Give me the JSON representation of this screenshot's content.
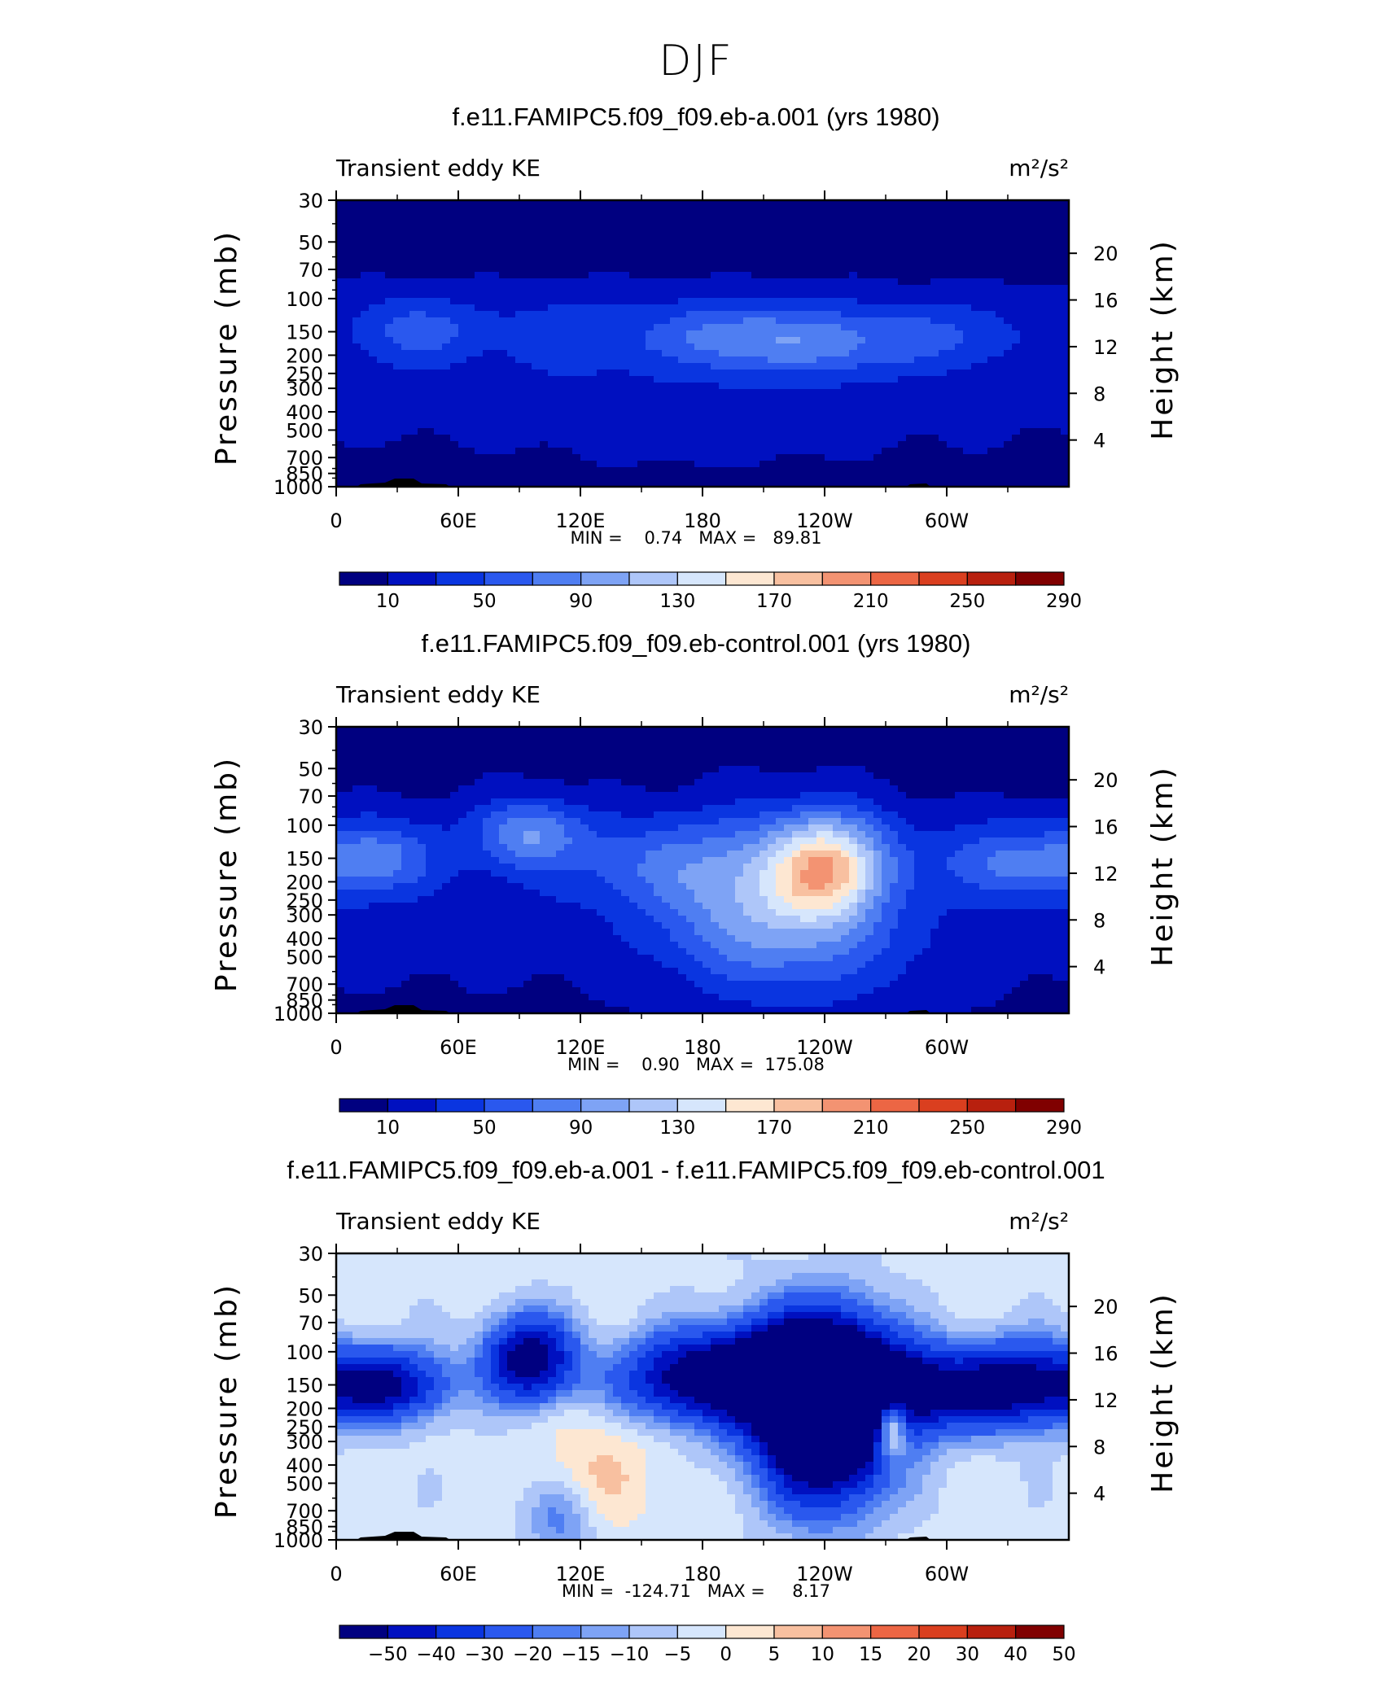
{
  "figure_title": "DJF",
  "palettes": {
    "abs": [
      "#000080",
      "#0010c0",
      "#0a35e0",
      "#2a58ee",
      "#4f7ef2",
      "#7ea3f5",
      "#aec6f9",
      "#d6e6fc",
      "#fde7d2",
      "#f8c0a0",
      "#f39372",
      "#ec6644",
      "#da3f1f",
      "#b8200e",
      "#800000"
    ],
    "diff": [
      "#000080",
      "#0010c0",
      "#0a35e0",
      "#2a58ee",
      "#4f7ef2",
      "#7ea3f5",
      "#aec6f9",
      "#d6e6fc",
      "#fde7d2",
      "#f8c0a0",
      "#f39372",
      "#ec6644",
      "#da3f1f",
      "#b8200e",
      "#800000"
    ]
  },
  "topography_color": "#000000",
  "chart_data": [
    {
      "type": "heatmap",
      "title": "f.e11.FAMIPC5.f09_f09.eb-a.001 (yrs 1980)",
      "left_label": "Transient eddy KE",
      "right_label": "m²/s²",
      "ylabel": "Pressure (mb)",
      "y2label": "Height (km)",
      "x_ticks": [
        "0",
        "60E",
        "120E",
        "180",
        "120W",
        "60W"
      ],
      "y_ticks": [
        "30",
        "50",
        "70",
        "100",
        "150",
        "200",
        "250",
        "300",
        "400",
        "500",
        "700",
        "850",
        "1000"
      ],
      "y2_ticks": [
        "20",
        "16",
        "12",
        "8",
        "4"
      ],
      "stats": "MIN =    0.74   MAX =   89.81",
      "min": 0.74,
      "max": 89.81,
      "colorbar": {
        "palette": "abs",
        "labels": [
          "10",
          "50",
          "90",
          "130",
          "170",
          "210",
          "250",
          "290"
        ]
      },
      "fields": {
        "base": 15,
        "blobs": [
          {
            "lon": 190,
            "p": 160,
            "slon": 25,
            "slp": 0.3,
            "amp": 55
          },
          {
            "lon": 240,
            "p": 170,
            "slon": 28,
            "slp": 0.3,
            "amp": 60
          },
          {
            "lon": 40,
            "p": 150,
            "slon": 22,
            "slp": 0.3,
            "amp": 45
          },
          {
            "lon": 120,
            "p": 160,
            "slon": 30,
            "slp": 0.35,
            "amp": 30
          },
          {
            "lon": 300,
            "p": 160,
            "slon": 25,
            "slp": 0.3,
            "amp": 35
          },
          {
            "lon": 180,
            "p": 450,
            "slon": 60,
            "slp": 0.4,
            "amp": 10
          }
        ],
        "strat_drop": 14,
        "sfc_drop": 10
      }
    },
    {
      "type": "heatmap",
      "title": "f.e11.FAMIPC5.f09_f09.eb-control.001 (yrs 1980)",
      "left_label": "Transient eddy KE",
      "right_label": "m²/s²",
      "ylabel": "Pressure (mb)",
      "y2label": "Height (km)",
      "x_ticks": [
        "0",
        "60E",
        "120E",
        "180",
        "120W",
        "60W"
      ],
      "y_ticks": [
        "30",
        "50",
        "70",
        "100",
        "150",
        "200",
        "250",
        "300",
        "400",
        "500",
        "700",
        "850",
        "1000"
      ],
      "y2_ticks": [
        "20",
        "16",
        "12",
        "8",
        "4"
      ],
      "stats": "MIN =    0.90   MAX =  175.08",
      "min": 0.9,
      "max": 175.08,
      "colorbar": {
        "palette": "abs",
        "labels": [
          "10",
          "50",
          "90",
          "130",
          "170",
          "210",
          "250",
          "290"
        ]
      },
      "fields": {
        "base": 20,
        "blobs": [
          {
            "lon": 242,
            "p": 170,
            "slon": 20,
            "slp": 0.45,
            "amp": 150
          },
          {
            "lon": 200,
            "p": 220,
            "slon": 30,
            "slp": 0.6,
            "amp": 70
          },
          {
            "lon": 95,
            "p": 110,
            "slon": 18,
            "slp": 0.3,
            "amp": 70
          },
          {
            "lon": 20,
            "p": 150,
            "slon": 20,
            "slp": 0.3,
            "amp": 60
          },
          {
            "lon": 330,
            "p": 160,
            "slon": 25,
            "slp": 0.3,
            "amp": 55
          },
          {
            "lon": 150,
            "p": 160,
            "slon": 30,
            "slp": 0.35,
            "amp": 35
          },
          {
            "lon": 230,
            "p": 500,
            "slon": 40,
            "slp": 0.5,
            "amp": 40
          }
        ],
        "strat_drop": 15,
        "sfc_drop": 12
      }
    },
    {
      "type": "heatmap",
      "title": "f.e11.FAMIPC5.f09_f09.eb-a.001 - f.e11.FAMIPC5.f09_f09.eb-control.001",
      "left_label": "Transient eddy KE",
      "right_label": "m²/s²",
      "ylabel": "Pressure (mb)",
      "y2label": "Height (km)",
      "x_ticks": [
        "0",
        "60E",
        "120E",
        "180",
        "120W",
        "60W"
      ],
      "y_ticks": [
        "30",
        "50",
        "70",
        "100",
        "150",
        "200",
        "250",
        "300",
        "400",
        "500",
        "700",
        "850",
        "1000"
      ],
      "y2_ticks": [
        "20",
        "16",
        "12",
        "8",
        "4"
      ],
      "stats": "MIN =  -124.71   MAX =     8.17",
      "min": -124.71,
      "max": 8.17,
      "colorbar": {
        "palette": "diff",
        "labels": [
          "-50",
          "-40",
          "-30",
          "-20",
          "-15",
          "-10",
          "-5",
          "0",
          "5",
          "10",
          "15",
          "20",
          "30",
          "40",
          "50"
        ]
      },
      "fields": {
        "base": -3,
        "blobs": [
          {
            "lon": 240,
            "p": 200,
            "slon": 22,
            "slp": 0.7,
            "amp": -120
          },
          {
            "lon": 215,
            "p": 130,
            "slon": 30,
            "slp": 0.4,
            "amp": -60
          },
          {
            "lon": 95,
            "p": 110,
            "slon": 15,
            "slp": 0.35,
            "amp": -60
          },
          {
            "lon": 25,
            "p": 150,
            "slon": 20,
            "slp": 0.3,
            "amp": -50
          },
          {
            "lon": 335,
            "p": 150,
            "slon": 22,
            "slp": 0.35,
            "amp": -55
          },
          {
            "lon": 170,
            "p": 140,
            "slon": 25,
            "slp": 0.35,
            "amp": -40
          },
          {
            "lon": 280,
            "p": 160,
            "slon": 25,
            "slp": 0.35,
            "amp": -55
          },
          {
            "lon": 272,
            "p": 230,
            "slon": 6,
            "slp": 0.3,
            "amp": 60
          },
          {
            "lon": 130,
            "p": 400,
            "slon": 20,
            "slp": 0.6,
            "amp": 8
          },
          {
            "lon": 110,
            "p": 800,
            "slon": 12,
            "slp": 0.3,
            "amp": -15
          }
        ],
        "strat_drop": 0,
        "sfc_drop": 0
      }
    }
  ]
}
